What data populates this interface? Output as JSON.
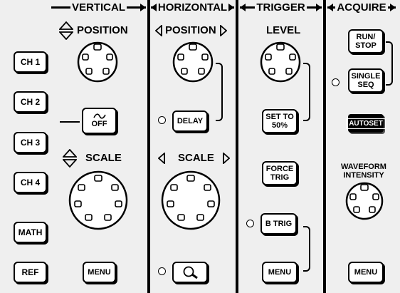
{
  "sections": {
    "vertical": "VERTICAL",
    "horizontal": "HORIZONTAL",
    "trigger": "TRIGGER",
    "acquire": "ACQUIRE"
  },
  "vertical": {
    "position_label": "POSITION",
    "scale_label": "SCALE",
    "channel_buttons": [
      "CH 1",
      "CH 2",
      "CH 3",
      "CH 4"
    ],
    "math_button": "MATH",
    "ref_button": "REF",
    "off_button": "OFF",
    "menu_button": "MENU"
  },
  "horizontal": {
    "position_label": "POSITION",
    "scale_label": "SCALE",
    "delay_button": "DELAY"
  },
  "trigger": {
    "level_label": "LEVEL",
    "set_to_50_line1": "SET TO",
    "set_to_50_line2": "50%",
    "force_trig_line1": "FORCE",
    "force_trig_line2": "TRIG",
    "b_trig_button": "B TRIG",
    "menu_button": "MENU"
  },
  "acquire": {
    "run_stop_line1": "RUN/",
    "run_stop_line2": "STOP",
    "single_seq_line1": "SINGLE",
    "single_seq_line2": "SEQ",
    "autoset_button": "AUTOSET",
    "waveform_intensity_line1": "WAVEFORM",
    "waveform_intensity_line2": "INTENSITY",
    "menu_button": "MENU"
  }
}
